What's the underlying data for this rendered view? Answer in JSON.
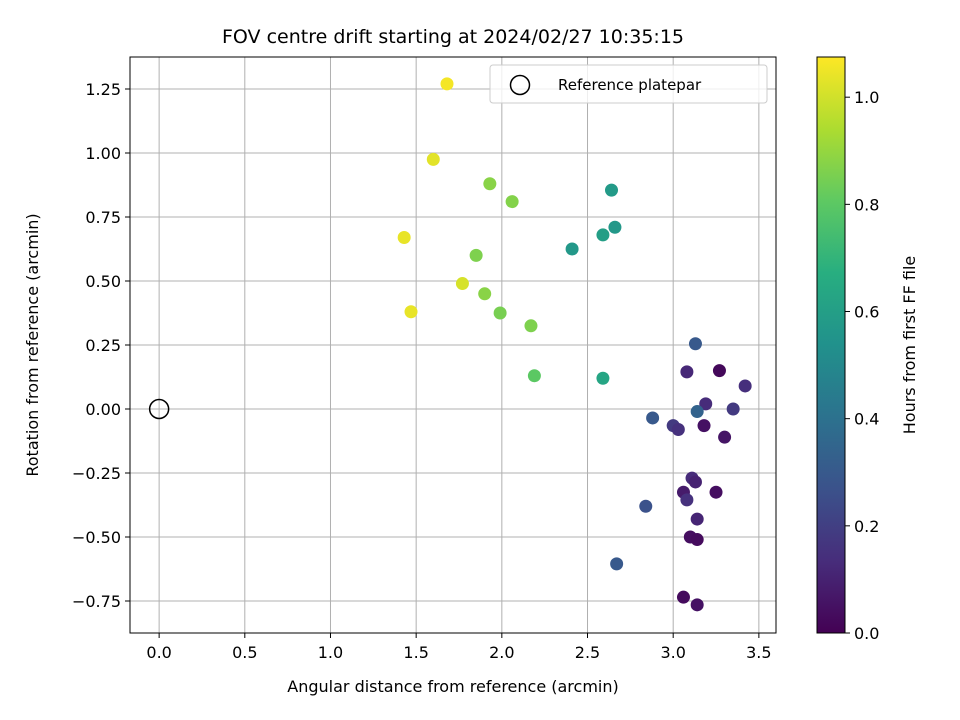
{
  "chart_data": {
    "type": "scatter",
    "title": "FOV centre drift starting at 2024/02/27 10:35:15",
    "xlabel": "Angular distance from reference (arcmin)",
    "ylabel": "Rotation from reference (arcmin)",
    "xlim": [
      -0.17,
      3.6
    ],
    "ylim": [
      -0.875,
      1.375
    ],
    "xticks": [
      0.0,
      0.5,
      1.0,
      1.5,
      2.0,
      2.5,
      3.0,
      3.5
    ],
    "xtick_labels": [
      "0.0",
      "0.5",
      "1.0",
      "1.5",
      "2.0",
      "2.5",
      "3.0",
      "3.5"
    ],
    "yticks": [
      -0.75,
      -0.5,
      -0.25,
      0.0,
      0.25,
      0.5,
      0.75,
      1.0,
      1.25
    ],
    "ytick_labels": [
      "−0.75",
      "−0.50",
      "−0.25",
      "0.00",
      "0.25",
      "0.50",
      "0.75",
      "1.00",
      "1.25"
    ],
    "grid": true,
    "colormap": "viridis",
    "colorbar": {
      "label": "Hours from first FF file",
      "range": [
        0.0,
        1.075
      ],
      "ticks": [
        0.0,
        0.2,
        0.4,
        0.6,
        0.8,
        1.0
      ],
      "tick_labels": [
        "0.0",
        "0.2",
        "0.4",
        "0.6",
        "0.8",
        "1.0"
      ]
    },
    "legend": {
      "placement": "upper right",
      "entries": [
        {
          "label": "Reference platepar",
          "marker": "open-circle"
        }
      ]
    },
    "reference_point": {
      "x": 0.0,
      "y": 0.0
    },
    "points": [
      {
        "x": 1.68,
        "y": 1.27,
        "c": 1.06
      },
      {
        "x": 1.6,
        "y": 0.975,
        "c": 1.03
      },
      {
        "x": 1.43,
        "y": 0.67,
        "c": 1.04
      },
      {
        "x": 1.77,
        "y": 0.49,
        "c": 1.01
      },
      {
        "x": 1.47,
        "y": 0.38,
        "c": 1.04
      },
      {
        "x": 1.93,
        "y": 0.88,
        "c": 0.88
      },
      {
        "x": 2.06,
        "y": 0.81,
        "c": 0.87
      },
      {
        "x": 1.85,
        "y": 0.6,
        "c": 0.86
      },
      {
        "x": 1.9,
        "y": 0.45,
        "c": 0.88
      },
      {
        "x": 1.99,
        "y": 0.375,
        "c": 0.85
      },
      {
        "x": 2.17,
        "y": 0.325,
        "c": 0.86
      },
      {
        "x": 2.19,
        "y": 0.13,
        "c": 0.8
      },
      {
        "x": 2.64,
        "y": 0.855,
        "c": 0.58
      },
      {
        "x": 2.66,
        "y": 0.71,
        "c": 0.57
      },
      {
        "x": 2.59,
        "y": 0.68,
        "c": 0.6
      },
      {
        "x": 2.41,
        "y": 0.625,
        "c": 0.57
      },
      {
        "x": 2.59,
        "y": 0.12,
        "c": 0.63
      },
      {
        "x": 3.13,
        "y": 0.255,
        "c": 0.3
      },
      {
        "x": 3.08,
        "y": 0.145,
        "c": 0.12
      },
      {
        "x": 3.27,
        "y": 0.15,
        "c": 0.02
      },
      {
        "x": 3.42,
        "y": 0.09,
        "c": 0.14
      },
      {
        "x": 3.19,
        "y": 0.02,
        "c": 0.13
      },
      {
        "x": 3.35,
        "y": 0.0,
        "c": 0.18
      },
      {
        "x": 3.14,
        "y": -0.01,
        "c": 0.34
      },
      {
        "x": 2.88,
        "y": -0.035,
        "c": 0.3
      },
      {
        "x": 3.0,
        "y": -0.065,
        "c": 0.18
      },
      {
        "x": 3.03,
        "y": -0.08,
        "c": 0.15
      },
      {
        "x": 3.18,
        "y": -0.065,
        "c": 0.05
      },
      {
        "x": 3.3,
        "y": -0.11,
        "c": 0.06
      },
      {
        "x": 3.11,
        "y": -0.27,
        "c": 0.13
      },
      {
        "x": 3.13,
        "y": -0.285,
        "c": 0.1
      },
      {
        "x": 3.06,
        "y": -0.325,
        "c": 0.08
      },
      {
        "x": 3.08,
        "y": -0.355,
        "c": 0.15
      },
      {
        "x": 3.25,
        "y": -0.325,
        "c": 0.04
      },
      {
        "x": 2.84,
        "y": -0.38,
        "c": 0.27
      },
      {
        "x": 3.14,
        "y": -0.43,
        "c": 0.11
      },
      {
        "x": 3.1,
        "y": -0.5,
        "c": 0.04
      },
      {
        "x": 3.14,
        "y": -0.51,
        "c": 0.03
      },
      {
        "x": 2.67,
        "y": -0.605,
        "c": 0.3
      },
      {
        "x": 3.06,
        "y": -0.735,
        "c": 0.03
      },
      {
        "x": 3.14,
        "y": -0.765,
        "c": 0.05
      }
    ]
  }
}
